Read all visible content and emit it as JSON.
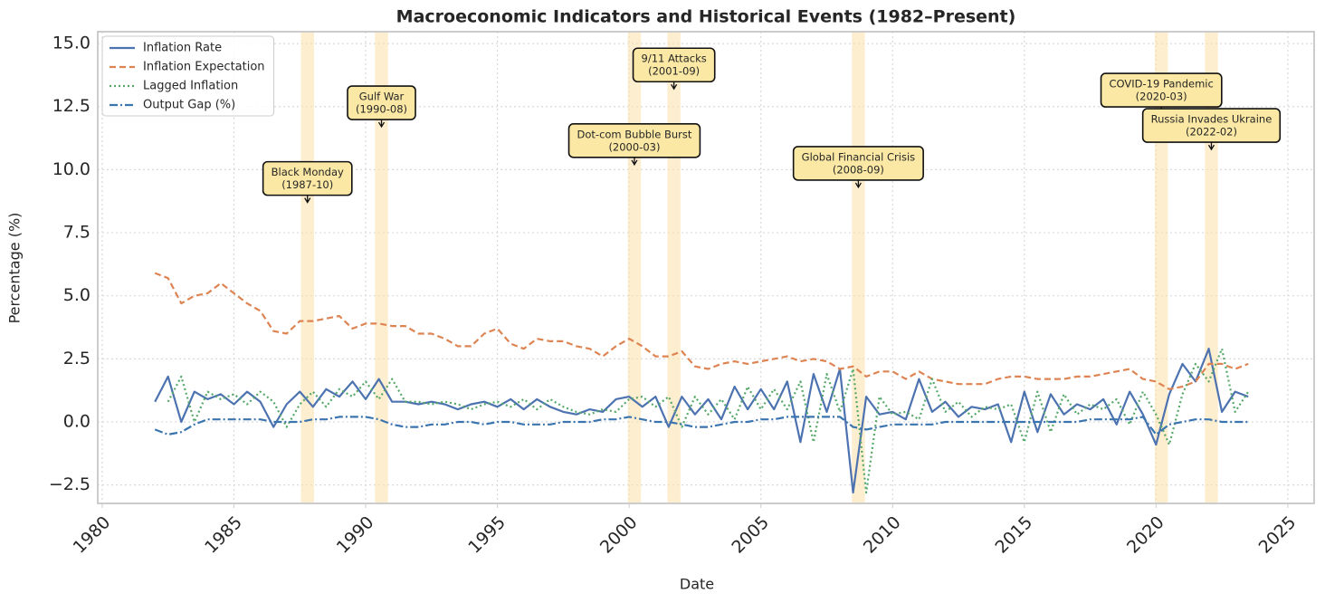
{
  "chart_data": {
    "type": "line",
    "title": "Macroeconomic Indicators and Historical Events (1982–Present)",
    "xlabel": "Date",
    "ylabel": "Percentage (%)",
    "x": [
      1982,
      1982.5,
      1983,
      1983.5,
      1984,
      1984.5,
      1985,
      1985.5,
      1986,
      1986.5,
      1987,
      1987.5,
      1988,
      1988.5,
      1989,
      1989.5,
      1990,
      1990.5,
      1991,
      1991.5,
      1992,
      1992.5,
      1993,
      1993.5,
      1994,
      1994.5,
      1995,
      1995.5,
      1996,
      1996.5,
      1997,
      1997.5,
      1998,
      1998.5,
      1999,
      1999.5,
      2000,
      2000.5,
      2001,
      2001.5,
      2002,
      2002.5,
      2003,
      2003.5,
      2004,
      2004.5,
      2005,
      2005.5,
      2006,
      2006.5,
      2007,
      2007.5,
      2008,
      2008.5,
      2009,
      2009.5,
      2010,
      2010.5,
      2011,
      2011.5,
      2012,
      2012.5,
      2013,
      2013.5,
      2014,
      2014.5,
      2015,
      2015.5,
      2016,
      2016.5,
      2017,
      2017.5,
      2018,
      2018.5,
      2019,
      2019.5,
      2020,
      2020.5,
      2021,
      2021.5,
      2022,
      2022.5,
      2023,
      2023.5
    ],
    "series": [
      {
        "name": "Inflation Rate",
        "color": "#4c72b0",
        "style": "solid",
        "values": [
          0.8,
          1.8,
          0.0,
          1.2,
          0.9,
          1.1,
          0.7,
          1.2,
          0.8,
          -0.2,
          0.7,
          1.2,
          0.6,
          1.3,
          1.0,
          1.6,
          0.9,
          1.7,
          0.8,
          0.8,
          0.7,
          0.8,
          0.7,
          0.5,
          0.7,
          0.8,
          0.6,
          0.9,
          0.5,
          0.9,
          0.6,
          0.4,
          0.3,
          0.5,
          0.4,
          0.9,
          1.0,
          0.6,
          1.0,
          -0.2,
          1.0,
          0.3,
          0.9,
          0.1,
          1.4,
          0.5,
          1.3,
          0.5,
          1.6,
          -0.8,
          1.9,
          0.4,
          2.1,
          -2.8,
          1.0,
          0.3,
          0.4,
          0.1,
          1.7,
          0.4,
          0.8,
          0.2,
          0.6,
          0.5,
          0.7,
          -0.8,
          1.2,
          -0.4,
          1.1,
          0.3,
          0.7,
          0.5,
          0.9,
          -0.1,
          1.2,
          0.3,
          -0.9,
          1.1,
          2.3,
          1.6,
          2.9,
          0.4,
          1.2,
          1.0
        ]
      },
      {
        "name": "Inflation Expectation",
        "color": "#dd8452",
        "style": "dashed",
        "values": [
          5.9,
          5.7,
          4.7,
          5.0,
          5.1,
          5.5,
          5.1,
          4.7,
          4.4,
          3.6,
          3.5,
          4.0,
          4.0,
          4.1,
          4.2,
          3.7,
          3.9,
          3.9,
          3.8,
          3.8,
          3.5,
          3.5,
          3.3,
          3.0,
          3.0,
          3.5,
          3.7,
          3.1,
          2.9,
          3.3,
          3.2,
          3.2,
          3.0,
          2.9,
          2.6,
          3.0,
          3.3,
          3.0,
          2.6,
          2.6,
          2.8,
          2.2,
          2.1,
          2.3,
          2.4,
          2.3,
          2.4,
          2.5,
          2.6,
          2.4,
          2.5,
          2.4,
          2.1,
          2.2,
          1.8,
          2.0,
          2.0,
          1.7,
          2.0,
          1.7,
          1.6,
          1.5,
          1.5,
          1.5,
          1.7,
          1.8,
          1.8,
          1.7,
          1.7,
          1.7,
          1.8,
          1.8,
          1.9,
          2.0,
          2.1,
          1.7,
          1.6,
          1.3,
          1.4,
          1.6,
          2.3,
          2.3,
          2.1,
          2.3
        ]
      },
      {
        "name": "Lagged Inflation",
        "color": "#55a868",
        "style": "dotted",
        "values": [
          null,
          0.8,
          1.8,
          0.0,
          1.2,
          0.9,
          1.1,
          0.7,
          1.2,
          0.8,
          -0.2,
          0.7,
          1.2,
          0.6,
          1.3,
          1.0,
          1.6,
          0.9,
          1.7,
          0.8,
          0.8,
          0.7,
          0.8,
          0.7,
          0.5,
          0.7,
          0.8,
          0.6,
          0.9,
          0.5,
          0.9,
          0.6,
          0.4,
          0.3,
          0.5,
          0.4,
          0.9,
          1.0,
          0.6,
          1.0,
          -0.2,
          1.0,
          0.3,
          0.9,
          0.1,
          1.4,
          0.5,
          1.3,
          0.5,
          1.6,
          -0.8,
          1.9,
          0.4,
          2.1,
          -2.8,
          1.0,
          0.3,
          0.4,
          0.1,
          1.7,
          0.4,
          0.8,
          0.2,
          0.6,
          0.5,
          0.7,
          -0.8,
          1.2,
          -0.4,
          1.1,
          0.3,
          0.7,
          0.5,
          0.9,
          -0.1,
          1.2,
          0.3,
          -0.9,
          1.1,
          2.3,
          1.6,
          2.9,
          0.4,
          1.2
        ]
      },
      {
        "name": "Output Gap (%)",
        "color": "#3b75af",
        "style": "dashdot",
        "values": [
          -0.3,
          -0.5,
          -0.4,
          -0.1,
          0.1,
          0.1,
          0.1,
          0.1,
          0.1,
          0.0,
          0.0,
          0.0,
          0.1,
          0.1,
          0.2,
          0.2,
          0.2,
          0.1,
          -0.1,
          -0.2,
          -0.2,
          -0.1,
          -0.1,
          0.0,
          0.0,
          -0.1,
          0.0,
          0.0,
          -0.1,
          -0.1,
          -0.1,
          0.0,
          0.0,
          0.0,
          0.1,
          0.1,
          0.2,
          0.1,
          0.0,
          0.0,
          -0.1,
          -0.2,
          -0.2,
          -0.1,
          0.0,
          0.0,
          0.1,
          0.1,
          0.2,
          0.2,
          0.2,
          0.2,
          0.2,
          -0.2,
          -0.3,
          -0.2,
          -0.1,
          -0.1,
          -0.1,
          -0.1,
          0.0,
          0.0,
          0.0,
          0.0,
          0.0,
          0.0,
          0.0,
          0.0,
          0.0,
          0.0,
          0.0,
          0.1,
          0.1,
          0.1,
          0.1,
          0.2,
          -0.5,
          -0.1,
          0.0,
          0.1,
          0.1,
          0.0,
          0.0,
          0.0
        ]
      }
    ],
    "events": [
      {
        "label": "Black Monday",
        "date": "(1987-10)",
        "x": 1987.79,
        "y": 8.7,
        "span": [
          1987.54,
          1988.04
        ]
      },
      {
        "label": "Gulf War",
        "date": "(1990-08)",
        "x": 1990.6,
        "y": 11.7,
        "span": [
          1990.35,
          1990.85
        ]
      },
      {
        "label": "Dot-com Bubble Burst",
        "date": "(2000-03)",
        "x": 2000.2,
        "y": 10.2,
        "span": [
          1999.95,
          2000.45
        ]
      },
      {
        "label": "9/11 Attacks",
        "date": "(2001-09)",
        "x": 2001.7,
        "y": 13.2,
        "span": [
          2001.45,
          2001.95
        ]
      },
      {
        "label": "Global Financial Crisis",
        "date": "(2008-09)",
        "x": 2008.7,
        "y": 9.3,
        "span": [
          2008.45,
          2008.95
        ]
      },
      {
        "label": "COVID-19 Pandemic",
        "date": "(2020-03)",
        "x": 2020.2,
        "y": 12.2,
        "span": [
          2019.95,
          2020.45
        ]
      },
      {
        "label": "Russia Invades Ukraine",
        "date": "(2022-02)",
        "x": 2022.1,
        "y": 10.8,
        "span": [
          2021.85,
          2022.35
        ]
      }
    ],
    "event_color": "#fde2b0",
    "xlim": [
      1979.83,
      2026.0
    ],
    "ylim": [
      -3.23,
      15.47
    ],
    "xticks": [
      1980,
      1985,
      1990,
      1995,
      2000,
      2005,
      2010,
      2015,
      2020,
      2025
    ],
    "yticks": [
      {
        "value": -2.5,
        "label": "−2.5"
      },
      {
        "value": 0,
        "label": "0.0"
      },
      2.5,
      {
        "value": 5,
        "label": "5.0"
      },
      7.5,
      {
        "value": 10,
        "label": "10.0"
      },
      12.5,
      {
        "value": 15,
        "label": "15.0"
      }
    ],
    "grid": true,
    "legend": "upper left"
  }
}
